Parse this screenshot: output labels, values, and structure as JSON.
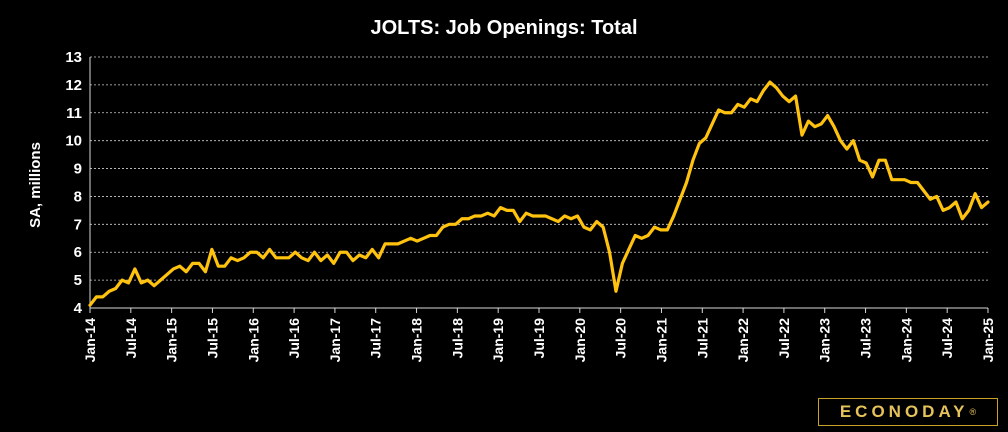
{
  "brand": {
    "name": "ECONODAY",
    "mark": "®"
  },
  "chart_data": {
    "type": "line",
    "title": "JOLTS: Job Openings: Total",
    "xlabel": "",
    "ylabel": "SA, millions",
    "ylim": [
      4,
      13
    ],
    "yticks": [
      4,
      5,
      6,
      7,
      8,
      9,
      10,
      11,
      12,
      13
    ],
    "grid": true,
    "legend": "none",
    "line_color": "#FFC20E",
    "x_start": "Jan-14",
    "x_end": "Jan-25",
    "x_tick_labels": [
      "Jan-14",
      "Jul-14",
      "Jan-15",
      "Jul-15",
      "Jan-16",
      "Jul-16",
      "Jan-17",
      "Jul-17",
      "Jan-18",
      "Jul-18",
      "Jan-19",
      "Jul-19",
      "Jan-20",
      "Jul-20",
      "Jan-21",
      "Jul-21",
      "Jan-22",
      "Jul-22",
      "Jan-23",
      "Jul-23",
      "Jan-24",
      "Jul-24",
      "Jan-25"
    ],
    "series": [
      {
        "values": [
          4.1,
          4.4,
          4.4,
          4.6,
          4.7,
          5.0,
          4.9,
          5.4,
          4.9,
          5.0,
          4.8,
          5.0,
          5.2,
          5.4,
          5.5,
          5.3,
          5.6,
          5.6,
          5.3,
          6.1,
          5.5,
          5.5,
          5.8,
          5.7,
          5.8,
          6.0,
          6.0,
          5.8,
          6.1,
          5.8,
          5.8,
          5.8,
          6.0,
          5.8,
          5.7,
          6.0,
          5.7,
          5.9,
          5.6,
          6.0,
          6.0,
          5.7,
          5.9,
          5.8,
          6.1,
          5.8,
          6.3,
          6.3,
          6.3,
          6.4,
          6.5,
          6.4,
          6.5,
          6.6,
          6.6,
          6.9,
          7.0,
          7.0,
          7.2,
          7.2,
          7.3,
          7.3,
          7.4,
          7.3,
          7.6,
          7.5,
          7.5,
          7.1,
          7.4,
          7.3,
          7.3,
          7.3,
          7.2,
          7.1,
          7.3,
          7.2,
          7.3,
          6.9,
          6.8,
          7.1,
          6.9,
          6.0,
          4.6,
          5.6,
          6.1,
          6.6,
          6.5,
          6.6,
          6.9,
          6.8,
          6.8,
          7.3,
          7.9,
          8.5,
          9.3,
          9.9,
          10.1,
          10.6,
          11.1,
          11.0,
          11.0,
          11.3,
          11.2,
          11.5,
          11.4,
          11.8,
          12.1,
          11.9,
          11.6,
          11.4,
          11.6,
          10.2,
          10.7,
          10.5,
          10.6,
          10.9,
          10.5,
          10.0,
          9.7,
          10.0,
          9.3,
          9.2,
          8.7,
          9.3,
          9.3,
          8.6,
          8.6,
          8.6,
          8.5,
          8.5,
          8.2,
          7.9,
          8.0,
          7.5,
          7.6,
          7.8,
          7.2,
          7.5,
          8.1,
          7.6,
          7.8
        ]
      }
    ]
  }
}
